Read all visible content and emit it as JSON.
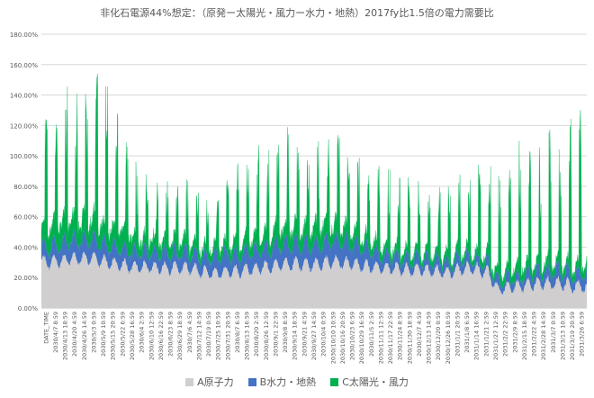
{
  "chart_data": {
    "type": "area",
    "title": "非化石電源44%想定：（原発ー太陽光・風力ー水力・地熱）2017fy比1.5倍の電力需要比",
    "xlabel": "",
    "ylabel": "",
    "stacked": true,
    "grid": true,
    "legend_position": "bottom",
    "ylim": [
      0,
      1.8
    ],
    "y_tick_labels": [
      "0.00%",
      "20.00%",
      "40.00%",
      "60.00%",
      "80.00%",
      "100.00%",
      "120.00%",
      "140.00%",
      "160.00%",
      "180.00%"
    ],
    "x_tick_labels": [
      "DATE_TIME",
      "2030/4/7 8:59",
      "2030/4/13 18:59",
      "2030/4/20 4:59",
      "2030/4/26 14:59",
      "2030/5/3 0:59",
      "2030/5/9 10:59",
      "2030/5/15 20:59",
      "2030/5/22 6:59",
      "2030/5/28 16:59",
      "2030/6/4 2:59",
      "2030/6/10 12:59",
      "2030/6/16 22:59",
      "2030/6/23 8:59",
      "2030/6/29 18:59",
      "2030/7/6 4:59",
      "2030/7/12 14:59",
      "2030/7/19 0:59",
      "2030/7/25 10:59",
      "2030/7/31 20:59",
      "2030/8/7 6:59",
      "2030/8/13 16:59",
      "2030/8/20 2:59",
      "2030/8/26 12:59",
      "2030/9/1 22:59",
      "2030/9/8 8:59",
      "2030/9/14 18:59",
      "2030/9/21 4:59",
      "2030/9/27 14:59",
      "2030/10/4 0:59",
      "2030/10/10 10:59",
      "2030/10/16 20:59",
      "2030/10/23 6:59",
      "2030/10/29 16:59",
      "2030/11/5 2:59",
      "2030/11/11 12:59",
      "2030/11/17 22:59",
      "2030/11/24 8:59",
      "2030/11/30 18:59",
      "2030/12/7 4:59",
      "2030/12/13 14:59",
      "2030/12/20 0:59",
      "2030/12/26 10:59",
      "2031/1/1 20:59",
      "2031/1/8 6:59",
      "2031/1/14 16:59",
      "2031/1/21 2:59",
      "2031/1/27 12:59",
      "2031/2/2 22:59",
      "2031/2/9 8:59",
      "2031/2/15 18:59",
      "2031/2/22 4:59",
      "2031/2/28 14:59",
      "2031/3/7 0:59",
      "2031/3/13 10:59",
      "2031/3/19 20:59",
      "2031/3/26 6:59"
    ],
    "series": [
      {
        "name": "A原子力",
        "color": "#d0cece",
        "envelope": "weekly values at the lower edge of the band (daily dips ~8-10 points lower)",
        "values": [
          0.3,
          0.3,
          0.31,
          0.32,
          0.32,
          0.33,
          0.31,
          0.29,
          0.28,
          0.27,
          0.27,
          0.27,
          0.26,
          0.26,
          0.26,
          0.26,
          0.24,
          0.23,
          0.23,
          0.24,
          0.24,
          0.25,
          0.26,
          0.27,
          0.28,
          0.29,
          0.29,
          0.28,
          0.29,
          0.3,
          0.3,
          0.29,
          0.28,
          0.27,
          0.26,
          0.26,
          0.25,
          0.25,
          0.25,
          0.24,
          0.24,
          0.23,
          0.25,
          0.26,
          0.25,
          0.23,
          0.12,
          0.13,
          0.14,
          0.15,
          0.16,
          0.16,
          0.16,
          0.15,
          0.14,
          0.14
        ]
      },
      {
        "name": "B水力・地熱",
        "color": "#4472c4",
        "envelope": "weekly increment of the band above A; spikes reach ~10 points higher",
        "values": [
          0.08,
          0.09,
          0.1,
          0.11,
          0.11,
          0.12,
          0.11,
          0.1,
          0.1,
          0.09,
          0.09,
          0.09,
          0.09,
          0.09,
          0.09,
          0.09,
          0.09,
          0.09,
          0.1,
          0.1,
          0.1,
          0.11,
          0.11,
          0.11,
          0.12,
          0.12,
          0.12,
          0.12,
          0.12,
          0.13,
          0.13,
          0.12,
          0.11,
          0.1,
          0.08,
          0.07,
          0.06,
          0.06,
          0.06,
          0.06,
          0.06,
          0.05,
          0.06,
          0.06,
          0.05,
          0.05,
          0.04,
          0.05,
          0.05,
          0.06,
          0.07,
          0.07,
          0.07,
          0.07,
          0.07,
          0.08
        ]
      },
      {
        "name": "C太陽光・風力",
        "color": "#00b050",
        "envelope": "weekly typical top increment above A+B; midday spikes reach approx. the peak values",
        "values": [
          0.12,
          0.14,
          0.14,
          0.13,
          0.12,
          0.14,
          0.12,
          0.12,
          0.12,
          0.1,
          0.08,
          0.08,
          0.07,
          0.08,
          0.08,
          0.07,
          0.06,
          0.06,
          0.06,
          0.07,
          0.08,
          0.08,
          0.09,
          0.09,
          0.1,
          0.1,
          0.1,
          0.1,
          0.1,
          0.11,
          0.1,
          0.08,
          0.07,
          0.06,
          0.05,
          0.05,
          0.05,
          0.05,
          0.04,
          0.04,
          0.05,
          0.04,
          0.04,
          0.04,
          0.04,
          0.05,
          0.05,
          0.05,
          0.06,
          0.06,
          0.06,
          0.05,
          0.05,
          0.05,
          0.05,
          0.06
        ],
        "peaks": [
          1.3,
          1.36,
          1.35,
          1.58,
          1.48,
          1.4,
          1.64,
          1.45,
          1.2,
          1.05,
          0.95,
          0.9,
          0.8,
          0.88,
          0.9,
          0.85,
          0.78,
          0.72,
          0.75,
          0.88,
          1.0,
          1.05,
          1.1,
          1.1,
          1.25,
          1.18,
          1.1,
          1.15,
          1.15,
          1.2,
          1.15,
          1.08,
          1.0,
          0.9,
          0.95,
          0.92,
          0.9,
          0.88,
          0.9,
          0.85,
          0.85,
          0.88,
          0.9,
          0.88,
          0.95,
          1.02,
          0.9,
          1.0,
          1.12,
          1.18,
          1.1,
          1.15,
          1.25,
          1.2,
          1.35,
          1.22
        ]
      }
    ]
  }
}
